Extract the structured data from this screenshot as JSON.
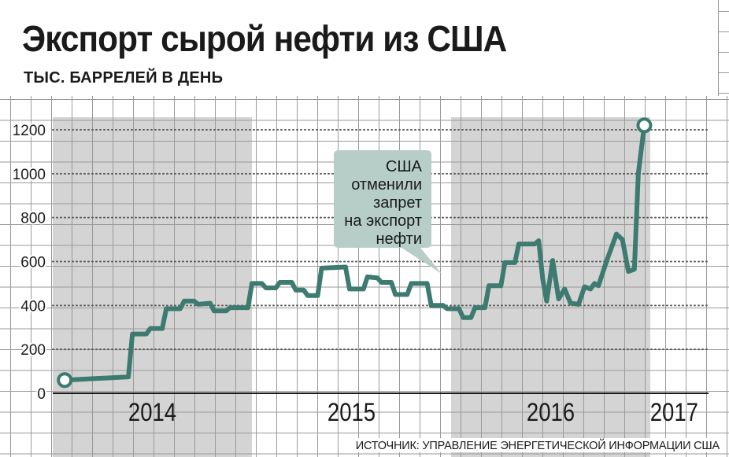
{
  "title": "Экспорт сырой нефти из США",
  "subtitle": "ТЫС. БАРРЕЛЕЙ В ДЕНЬ",
  "source": "ИСТОЧНИК: УПРАВЛЕНИЕ ЭНЕРГЕТИЧЕСКОЙ ИНФОРМАЦИИ США",
  "colors": {
    "line": "#3d7a70",
    "year_band": "#d4d4d4",
    "grid": "#9a9a9a",
    "callout": "#b7cdc8"
  },
  "chart_data": {
    "type": "line",
    "title": "Экспорт сырой нефти из США",
    "ylabel": "ТЫС. БАРРЕЛЕЙ В ДЕНЬ",
    "ylim": [
      0,
      1200
    ],
    "yticks": [
      0,
      200,
      400,
      600,
      800,
      1000,
      1200
    ],
    "xlim": [
      2014.0,
      2017.25
    ],
    "year_labels": [
      {
        "label": "2014",
        "x": 2014.5
      },
      {
        "label": "2015",
        "x": 2015.5
      },
      {
        "label": "2016",
        "x": 2016.5
      },
      {
        "label": "2017",
        "x": 2017.12
      }
    ],
    "shaded_years": [
      [
        2014.0,
        2015.0
      ],
      [
        2016.0,
        2017.0
      ]
    ],
    "grid": true,
    "annotation": {
      "lines": [
        "США",
        "отменили",
        "запрет",
        "на экспорт",
        "нефти"
      ],
      "x": 2015.96,
      "y": 545
    },
    "series": [
      {
        "values": [
          [
            2014.06,
            60
          ],
          [
            2014.38,
            75
          ],
          [
            2014.4,
            270
          ],
          [
            2014.47,
            270
          ],
          [
            2014.49,
            295
          ],
          [
            2014.55,
            295
          ],
          [
            2014.57,
            385
          ],
          [
            2014.64,
            385
          ],
          [
            2014.66,
            420
          ],
          [
            2014.71,
            420
          ],
          [
            2014.73,
            405
          ],
          [
            2014.79,
            410
          ],
          [
            2014.81,
            375
          ],
          [
            2014.87,
            375
          ],
          [
            2014.89,
            390
          ],
          [
            2014.98,
            390
          ],
          [
            2015.0,
            500
          ],
          [
            2015.05,
            500
          ],
          [
            2015.07,
            480
          ],
          [
            2015.12,
            480
          ],
          [
            2015.14,
            505
          ],
          [
            2015.2,
            505
          ],
          [
            2015.22,
            470
          ],
          [
            2015.26,
            470
          ],
          [
            2015.28,
            445
          ],
          [
            2015.33,
            445
          ],
          [
            2015.35,
            570
          ],
          [
            2015.47,
            575
          ],
          [
            2015.49,
            475
          ],
          [
            2015.56,
            475
          ],
          [
            2015.58,
            530
          ],
          [
            2015.63,
            525
          ],
          [
            2015.65,
            505
          ],
          [
            2015.7,
            505
          ],
          [
            2015.72,
            450
          ],
          [
            2015.78,
            450
          ],
          [
            2015.8,
            500
          ],
          [
            2015.88,
            500
          ],
          [
            2015.9,
            400
          ],
          [
            2015.96,
            400
          ],
          [
            2015.98,
            385
          ],
          [
            2016.04,
            385
          ],
          [
            2016.06,
            345
          ],
          [
            2016.1,
            345
          ],
          [
            2016.12,
            390
          ],
          [
            2016.17,
            390
          ],
          [
            2016.19,
            490
          ],
          [
            2016.25,
            490
          ],
          [
            2016.27,
            595
          ],
          [
            2016.32,
            595
          ],
          [
            2016.34,
            680
          ],
          [
            2016.42,
            680
          ],
          [
            2016.44,
            695
          ],
          [
            2016.46,
            520
          ],
          [
            2016.48,
            420
          ],
          [
            2016.51,
            605
          ],
          [
            2016.54,
            430
          ],
          [
            2016.57,
            475
          ],
          [
            2016.6,
            410
          ],
          [
            2016.64,
            405
          ],
          [
            2016.67,
            485
          ],
          [
            2016.7,
            475
          ],
          [
            2016.72,
            500
          ],
          [
            2016.74,
            490
          ],
          [
            2016.78,
            600
          ],
          [
            2016.83,
            725
          ],
          [
            2016.86,
            700
          ],
          [
            2016.89,
            555
          ],
          [
            2016.92,
            565
          ],
          [
            2016.94,
            1000
          ],
          [
            2016.97,
            1220
          ]
        ]
      }
    ]
  }
}
